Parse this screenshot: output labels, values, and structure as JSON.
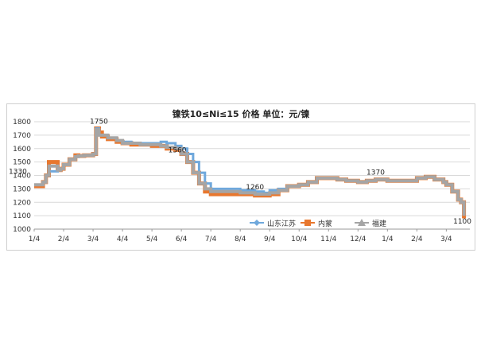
{
  "chart_data": {
    "type": "line",
    "title": "镍铁10≤Ni≤15 价格  单位：元/镍",
    "xlabel": "",
    "ylabel": "",
    "ylim": [
      1000,
      1800
    ],
    "yticks": [
      1000,
      1100,
      1200,
      1300,
      1400,
      1500,
      1600,
      1700,
      1800
    ],
    "xticks": [
      "1/4",
      "2/4",
      "3/4",
      "4/4",
      "5/4",
      "6/4",
      "7/4",
      "8/4",
      "9/4",
      "10/4",
      "11/4",
      "12/4",
      "1/4",
      "2/4",
      "3/4"
    ],
    "grid": "horizontal",
    "legend_position": "bottom-right",
    "annotations": [
      {
        "x": 0.0,
        "y": 1330,
        "text": "1330"
      },
      {
        "x": 2.2,
        "y": 1750,
        "text": "1750"
      },
      {
        "x": 4.5,
        "y": 1560,
        "text": "1560"
      },
      {
        "x": 7.5,
        "y": 1260,
        "text": "1260"
      },
      {
        "x": 11.6,
        "y": 1370,
        "text": "1370"
      },
      {
        "x": 14.3,
        "y": 1100,
        "text": "1100"
      }
    ],
    "series": [
      {
        "name": "山东江苏",
        "color": "#6fa8dc",
        "x": [
          0.0,
          0.3,
          0.4,
          0.5,
          0.8,
          0.9,
          1.0,
          1.2,
          1.4,
          1.5,
          1.7,
          2.0,
          2.1,
          2.2,
          2.3,
          2.5,
          2.8,
          3.0,
          3.3,
          3.6,
          4.0,
          4.3,
          4.5,
          4.8,
          5.0,
          5.2,
          5.4,
          5.6,
          5.8,
          6.0,
          6.3,
          6.5,
          7.0,
          7.5,
          7.8,
          8.0,
          8.3,
          8.6,
          9.0,
          9.3,
          9.6,
          10.0,
          10.3,
          10.6,
          11.0,
          11.3,
          11.6,
          12.0,
          12.3,
          12.6,
          13.0,
          13.3,
          13.6,
          13.9,
          14.0,
          14.2,
          14.4,
          14.5,
          14.6
        ],
        "y": [
          1330,
          1350,
          1400,
          1430,
          1440,
          1450,
          1480,
          1520,
          1540,
          1545,
          1550,
          1560,
          1750,
          1700,
          1700,
          1680,
          1660,
          1650,
          1640,
          1640,
          1640,
          1650,
          1640,
          1620,
          1600,
          1560,
          1500,
          1420,
          1340,
          1300,
          1300,
          1300,
          1290,
          1280,
          1270,
          1290,
          1300,
          1320,
          1330,
          1350,
          1380,
          1380,
          1370,
          1360,
          1350,
          1360,
          1370,
          1360,
          1360,
          1360,
          1380,
          1390,
          1370,
          1350,
          1330,
          1280,
          1220,
          1200,
          1100
        ]
      },
      {
        "name": "内蒙",
        "color": "#e8772e",
        "x": [
          0.0,
          0.3,
          0.4,
          0.5,
          0.8,
          0.9,
          1.0,
          1.2,
          1.4,
          1.5,
          1.7,
          2.0,
          2.1,
          2.2,
          2.3,
          2.5,
          2.8,
          3.0,
          3.3,
          3.6,
          4.0,
          4.3,
          4.5,
          4.8,
          5.0,
          5.2,
          5.4,
          5.6,
          5.8,
          6.0,
          6.3,
          6.5,
          7.0,
          7.5,
          7.8,
          8.0,
          8.3,
          8.6,
          9.0,
          9.3,
          9.6,
          10.0,
          10.3,
          10.6,
          11.0,
          11.3,
          11.6,
          12.0,
          12.3,
          12.6,
          13.0,
          13.3,
          13.6,
          13.9,
          14.0,
          14.2,
          14.4,
          14.5,
          14.6
        ],
        "y": [
          1320,
          1350,
          1400,
          1500,
          1440,
          1450,
          1480,
          1520,
          1550,
          1545,
          1550,
          1560,
          1750,
          1720,
          1690,
          1670,
          1650,
          1640,
          1630,
          1630,
          1620,
          1620,
          1600,
          1590,
          1560,
          1500,
          1420,
          1340,
          1280,
          1260,
          1260,
          1260,
          1260,
          1250,
          1250,
          1260,
          1290,
          1320,
          1330,
          1350,
          1380,
          1380,
          1370,
          1360,
          1350,
          1360,
          1370,
          1360,
          1360,
          1360,
          1380,
          1390,
          1370,
          1350,
          1330,
          1280,
          1220,
          1200,
          1080
        ]
      },
      {
        "name": "福建",
        "color": "#a5a5a5",
        "x": [
          0.0,
          0.3,
          0.4,
          0.5,
          0.8,
          0.9,
          1.0,
          1.2,
          1.4,
          1.5,
          1.7,
          2.0,
          2.1,
          2.2,
          2.3,
          2.5,
          2.8,
          3.0,
          3.3,
          3.6,
          4.0,
          4.3,
          4.5,
          4.8,
          5.0,
          5.2,
          5.4,
          5.6,
          5.8,
          6.0,
          6.3,
          6.5,
          7.0,
          7.5,
          7.8,
          8.0,
          8.3,
          8.6,
          9.0,
          9.3,
          9.6,
          10.0,
          10.3,
          10.6,
          11.0,
          11.3,
          11.6,
          12.0,
          12.3,
          12.6,
          13.0,
          13.3,
          13.6,
          13.9,
          14.0,
          14.2,
          14.4,
          14.5,
          14.6
        ],
        "y": [
          1330,
          1350,
          1400,
          1470,
          1440,
          1450,
          1480,
          1520,
          1540,
          1545,
          1550,
          1560,
          1740,
          1700,
          1700,
          1680,
          1660,
          1640,
          1640,
          1630,
          1630,
          1620,
          1610,
          1600,
          1560,
          1500,
          1420,
          1340,
          1300,
          1280,
          1280,
          1280,
          1270,
          1260,
          1260,
          1270,
          1290,
          1320,
          1330,
          1350,
          1380,
          1380,
          1370,
          1360,
          1350,
          1360,
          1370,
          1360,
          1360,
          1360,
          1380,
          1390,
          1370,
          1350,
          1330,
          1280,
          1220,
          1200,
          1100
        ]
      }
    ]
  }
}
